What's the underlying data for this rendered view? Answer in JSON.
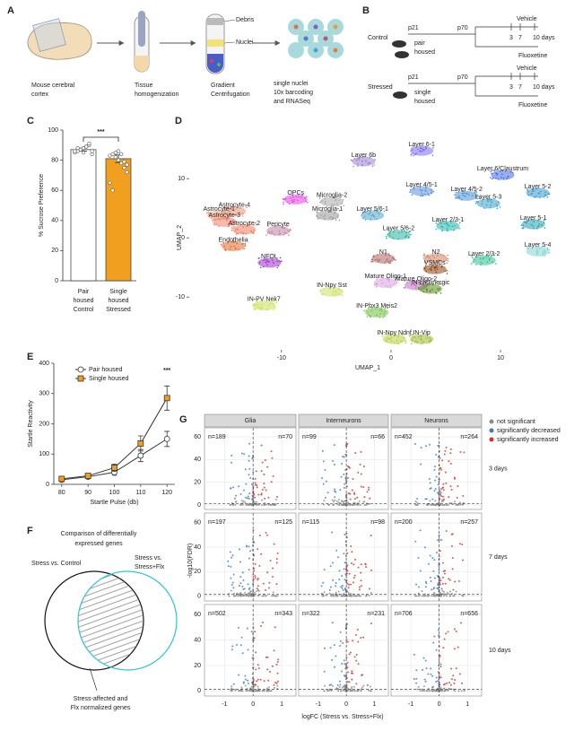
{
  "panel_labels": [
    "A",
    "B",
    "C",
    "D",
    "E",
    "F",
    "G"
  ],
  "panel_a": {
    "steps": [
      [
        "Mouse cerebral",
        "cortex"
      ],
      [
        "Tissue",
        "homogenization"
      ],
      [
        "Gradient",
        "Centrifugation"
      ],
      [
        "single nuclei",
        "10x barcoding",
        "and RNASeq"
      ]
    ],
    "layers": [
      "Debris",
      "Nuclei"
    ]
  },
  "panel_b": {
    "groups": [
      {
        "name": "Control",
        "housing": [
          "pair",
          "housed"
        ]
      },
      {
        "name": "Stressed",
        "housing": [
          "single",
          "housed"
        ]
      }
    ],
    "ages": [
      "p21",
      "p70"
    ],
    "treatments": [
      "Vehicle",
      "Fluoxetine"
    ],
    "timepoints": [
      "3",
      "7",
      "10 days"
    ]
  },
  "panel_f": {
    "title": [
      "Comparison of differentially",
      "expressed genes"
    ],
    "left": [
      "Stress vs. Control"
    ],
    "right": [
      "Stress vs.",
      "Stress+Flx"
    ],
    "caption": [
      "Stress-affected and",
      "Flx normalized genes"
    ]
  },
  "chart_data": [
    {
      "type": "bar",
      "categories": [
        [
          "Pair",
          "housed",
          "Control"
        ],
        [
          "Single",
          "housed",
          "Stressed"
        ]
      ],
      "values": [
        87,
        81
      ],
      "errors": [
        1,
        2.5
      ],
      "points": [
        [
          85,
          86,
          87,
          88,
          89,
          90,
          84,
          86,
          88,
          87,
          85,
          89,
          91,
          86
        ],
        [
          83,
          84,
          85,
          80,
          78,
          75,
          72,
          65,
          60,
          82,
          86,
          84,
          79,
          77
        ]
      ],
      "colors": [
        "#ffffff",
        "#f0a01e"
      ],
      "ylabel": "% Sucrose Preference",
      "ylim": [
        0,
        100
      ],
      "yticks": [
        0,
        20,
        40,
        60,
        80,
        100
      ],
      "annotation": "***"
    },
    {
      "type": "line",
      "x": [
        80,
        90,
        100,
        110,
        120
      ],
      "series": [
        {
          "name": "Pair housed",
          "color": "#ffffff",
          "values": [
            15,
            25,
            40,
            95,
            150
          ],
          "errors": [
            5,
            6,
            10,
            20,
            25
          ]
        },
        {
          "name": "Single housed",
          "color": "#f0a01e",
          "values": [
            18,
            28,
            55,
            135,
            285
          ],
          "errors": [
            5,
            6,
            12,
            25,
            40
          ]
        }
      ],
      "xlabel": "Startle Pulse (db)",
      "ylabel": "Startle Reactivity",
      "xlim": [
        77,
        123
      ],
      "ylim": [
        0,
        400
      ],
      "xticks": [
        80,
        90,
        100,
        110,
        120
      ],
      "yticks": [
        0,
        100,
        200,
        300,
        400
      ],
      "annotation": "***"
    },
    {
      "type": "scatter",
      "xlabel": "UMAP_1",
      "ylabel": "UMAP_2",
      "xlim": [
        -18.5,
        16.3
      ],
      "ylim": [
        -18.6,
        18.2
      ],
      "xticks": [
        -10,
        0,
        10
      ],
      "yticks": [
        -10,
        0,
        10
      ],
      "clusters": [
        {
          "label": "Layer 6-1",
          "x": 2.8,
          "y": 14.7,
          "color": "#7b68ee"
        },
        {
          "label": "Layer 6b",
          "x": -2.5,
          "y": 12.9,
          "color": "#9b7fd4"
        },
        {
          "label": "Layer 6/Claustrum",
          "x": 10.2,
          "y": 10.6,
          "color": "#4169e1"
        },
        {
          "label": "Layer 4/5-1",
          "x": 2.8,
          "y": 7.9,
          "color": "#5b8fd8"
        },
        {
          "label": "Layer 4/5-2",
          "x": 6.9,
          "y": 7.1,
          "color": "#4a90d9"
        },
        {
          "label": "Layer 5-2",
          "x": 13.4,
          "y": 7.6,
          "color": "#3399cc"
        },
        {
          "label": "Layer 5-3",
          "x": 8.9,
          "y": 5.8,
          "color": "#3aa0c8"
        },
        {
          "label": "Astrocyte-1",
          "x": -15.7,
          "y": 3.8,
          "color": "#f4a582"
        },
        {
          "label": "OPCs",
          "x": -8.7,
          "y": 6.5,
          "color": "#e040e0"
        },
        {
          "label": "Microglia-2",
          "x": -5.4,
          "y": 6.1,
          "color": "#aaaaaa"
        },
        {
          "label": "Astrocyte-4",
          "x": -14.3,
          "y": 4.5,
          "color": "#e8967a"
        },
        {
          "label": "Microglia-1",
          "x": -5.8,
          "y": 3.8,
          "color": "#999999"
        },
        {
          "label": "Layer 5/6-1",
          "x": -1.7,
          "y": 3.8,
          "color": "#4ea3c9"
        },
        {
          "label": "Astrocyte-3",
          "x": -15.2,
          "y": 2.7,
          "color": "#f08070"
        },
        {
          "label": "Layer 2/3-1",
          "x": 5.2,
          "y": 2.0,
          "color": "#20b2aa"
        },
        {
          "label": "Layer 5-1",
          "x": 13.0,
          "y": 2.3,
          "color": "#1fa0b0"
        },
        {
          "label": "Astrocyte-2",
          "x": -13.4,
          "y": 1.4,
          "color": "#ee7b5e"
        },
        {
          "label": "Pericyte",
          "x": -10.3,
          "y": 1.2,
          "color": "#c080a0"
        },
        {
          "label": "Layer 5/6-2",
          "x": 0.7,
          "y": 0.5,
          "color": "#2ab3a0"
        },
        {
          "label": "Endothelia",
          "x": -14.4,
          "y": -1.4,
          "color": "#e06a2a"
        },
        {
          "label": "Layer 5-4",
          "x": 13.4,
          "y": -2.3,
          "color": "#7fd3d0"
        },
        {
          "label": "N1",
          "x": -0.7,
          "y": -3.5,
          "color": "#b06060"
        },
        {
          "label": "N2",
          "x": 4.1,
          "y": -3.5,
          "color": "#d08060"
        },
        {
          "label": "Layer 2/3-2",
          "x": 8.5,
          "y": -3.8,
          "color": "#30c090"
        },
        {
          "label": "NFOL",
          "x": -11.1,
          "y": -4.2,
          "color": "#9932cc"
        },
        {
          "label": "VSMCs",
          "x": 4.0,
          "y": -5.3,
          "color": "#8b4513"
        },
        {
          "label": "Mature Oligo-1",
          "x": -0.5,
          "y": -7.6,
          "color": "#d8a0e0"
        },
        {
          "label": "Mature Oligo-2",
          "x": 2.3,
          "y": -8.0,
          "color": "#c070c0"
        },
        {
          "label": "IN-Npy Sst",
          "x": -5.4,
          "y": -9.1,
          "color": "#d0e060"
        },
        {
          "label": "IN-cholinergic",
          "x": 3.6,
          "y": -8.6,
          "color": "#5a8a20"
        },
        {
          "label": "IN-PV Nek7",
          "x": -11.6,
          "y": -11.4,
          "color": "#c8e050"
        },
        {
          "label": "IN-Pbx3 Meis2",
          "x": -1.3,
          "y": -12.6,
          "color": "#70c040"
        },
        {
          "label": "IN-Npy Ndnf",
          "x": 0.3,
          "y": -17.1,
          "color": "#b8d040"
        },
        {
          "label": "IN-Vip",
          "x": 2.8,
          "y": -17.1,
          "color": "#9ab830"
        }
      ]
    },
    {
      "type": "volcano",
      "facets": [
        "Glia",
        "Interneurons",
        "Neurons"
      ],
      "rows": [
        "3 days",
        "7 days",
        "10 days"
      ],
      "counts": [
        [
          [
            189,
            70
          ],
          [
            99,
            66
          ],
          [
            452,
            264
          ]
        ],
        [
          [
            197,
            125
          ],
          [
            115,
            98
          ],
          [
            200,
            257
          ]
        ],
        [
          [
            502,
            343
          ],
          [
            322,
            231
          ],
          [
            706,
            656
          ]
        ]
      ],
      "value_labels": [
        [
          [
            "n=189",
            "n=70"
          ],
          [
            "n=99",
            "n=66"
          ],
          [
            "n=452",
            "n=264"
          ]
        ],
        [
          [
            "n=197",
            "n=125"
          ],
          [
            "n=115",
            "n=98"
          ],
          [
            "n=200",
            "n=257"
          ]
        ],
        [
          [
            "n=502",
            "n=343"
          ],
          [
            "n=322",
            "n=231"
          ],
          [
            "n=706",
            "n=656"
          ]
        ]
      ],
      "xlabel": "logFC (Stress vs. Stress+Flx)",
      "ylabel": "-log10(FDR)",
      "xlim": [
        -1.7,
        1.5
      ],
      "ylim": [
        -4,
        68
      ],
      "xticks": [
        -1,
        0,
        1
      ],
      "yticks": [
        0,
        20,
        40,
        60
      ],
      "vline": 0,
      "hline": 1.3,
      "series": [
        {
          "name": "not significant",
          "color": "#8c8c8c"
        },
        {
          "name": "significantly decreased",
          "color": "#3a7cc6"
        },
        {
          "name": "significantly increased",
          "color": "#d0342c"
        }
      ],
      "legend": "right"
    }
  ]
}
